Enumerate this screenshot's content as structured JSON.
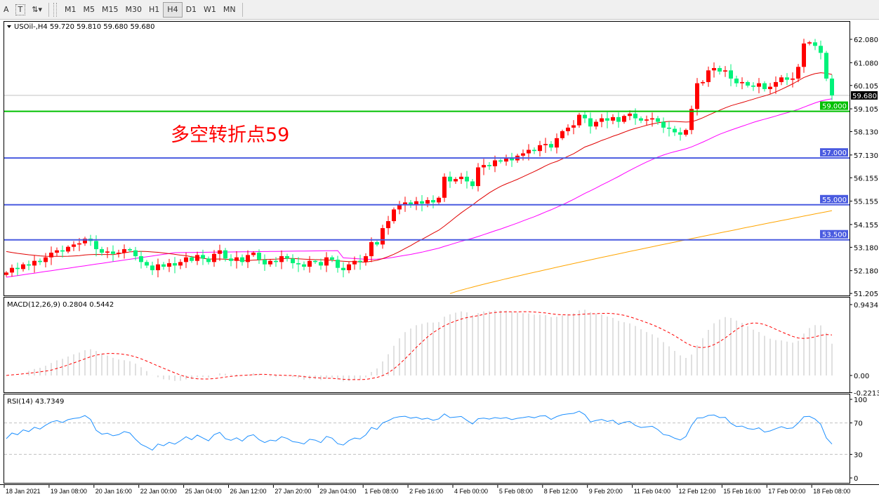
{
  "toolbar": {
    "tools": [
      {
        "label": "A",
        "icon": "text-tool-icon"
      },
      {
        "label": "T",
        "icon": "text-label-icon"
      },
      {
        "label": "⇅▾",
        "icon": "arrows-dropdown-icon"
      }
    ],
    "timeframes": [
      "M1",
      "M5",
      "M15",
      "M30",
      "H1",
      "H4",
      "D1",
      "W1",
      "MN"
    ],
    "active_timeframe": "H4"
  },
  "main": {
    "header": "USOil-,H4  59.720 59.810 59.680 59.680",
    "annotation": "多空转折点59",
    "annotation_color": "#FF0000",
    "price_ticks": [
      "62.080",
      "61.080",
      "60.105",
      "59.105",
      "58.130",
      "57.130",
      "56.155",
      "55.155",
      "54.155",
      "53.180",
      "52.180",
      "51.205"
    ],
    "current_price": "59.680",
    "levels": [
      {
        "value": 59.0,
        "label": "59.000",
        "color": "#00C000"
      },
      {
        "value": 57.0,
        "label": "57.000",
        "color": "#4A5BE0"
      },
      {
        "value": 55.0,
        "label": "55.000",
        "color": "#4A5BE0"
      },
      {
        "value": 53.5,
        "label": "53.500",
        "color": "#4A5BE0"
      }
    ],
    "bull_color": "#FF0000",
    "bear_color": "#00F27A",
    "ma_fast_color": "#E00000",
    "ma_mid_color": "#FF00FF",
    "ma_slow_color": "#FFA500"
  },
  "macd": {
    "header": "MACD(12,26,9) 0.2804 0.5442",
    "ticks": [
      "0.9434",
      "0.00",
      "-0.2213"
    ]
  },
  "rsi": {
    "header": "RSI(14) 43.7349",
    "ticks": [
      "100",
      "70",
      "30",
      "0"
    ]
  },
  "x_labels": [
    "18 Jan 2021",
    "19 Jan 08:00",
    "20 Jan 16:00",
    "22 Jan 00:00",
    "25 Jan 04:00",
    "26 Jan 12:00",
    "27 Jan 20:00",
    "29 Jan 04:00",
    "1 Feb 08:00",
    "2 Feb 16:00",
    "4 Feb 00:00",
    "5 Feb 08:00",
    "8 Feb 12:00",
    "9 Feb 20:00",
    "11 Feb 04:00",
    "12 Feb 12:00",
    "15 Feb 16:00",
    "17 Feb 00:00",
    "18 Feb 08:00"
  ],
  "chart_data": {
    "type": "candlestick",
    "symbol": "USOil-",
    "timeframe": "H4",
    "ylim": [
      51.205,
      62.08
    ],
    "closes": [
      52.1,
      52.3,
      52.25,
      52.45,
      52.4,
      52.6,
      52.55,
      52.75,
      52.95,
      53.05,
      53.0,
      53.2,
      53.3,
      53.35,
      53.55,
      53.45,
      53.1,
      52.95,
      53.0,
      52.9,
      52.95,
      53.1,
      53.05,
      52.8,
      52.55,
      52.4,
      52.2,
      52.45,
      52.35,
      52.5,
      52.4,
      52.55,
      52.75,
      52.6,
      52.85,
      52.7,
      52.55,
      52.9,
      53.05,
      52.7,
      52.6,
      52.75,
      52.55,
      52.85,
      52.95,
      52.65,
      52.45,
      52.6,
      52.55,
      52.8,
      52.7,
      52.5,
      52.45,
      52.35,
      52.6,
      52.55,
      52.4,
      52.75,
      52.65,
      52.3,
      52.2,
      52.45,
      52.6,
      52.55,
      52.8,
      53.4,
      53.3,
      54.0,
      54.3,
      54.8,
      55.0,
      55.1,
      55.0,
      55.15,
      55.05,
      55.2,
      55.1,
      55.3,
      56.2,
      56.0,
      56.1,
      56.2,
      56.0,
      55.8,
      56.6,
      56.7,
      56.65,
      56.9,
      56.85,
      57.0,
      56.9,
      57.1,
      57.2,
      57.35,
      57.3,
      57.55,
      57.6,
      57.45,
      57.85,
      58.15,
      58.3,
      58.4,
      58.85,
      58.7,
      58.35,
      58.55,
      58.7,
      58.6,
      58.75,
      58.55,
      58.8,
      58.9,
      58.7,
      58.6,
      58.65,
      58.7,
      58.55,
      58.3,
      58.25,
      58.1,
      58.0,
      58.2,
      59.1,
      60.2,
      60.25,
      60.75,
      60.85,
      60.7,
      60.75,
      60.4,
      60.2,
      60.25,
      60.1,
      60.05,
      60.2,
      59.95,
      60.05,
      60.25,
      60.45,
      60.35,
      60.4,
      60.9,
      61.9,
      61.95,
      61.8,
      61.5,
      60.4,
      59.68
    ],
    "ma_slow": {
      "start": 51.2,
      "end": 54.75,
      "from_label": "2 Feb 16:00"
    },
    "macd_range": [
      -0.2213,
      0.9434
    ],
    "rsi_range": [
      0,
      100
    ],
    "rsi_levels": [
      30,
      70
    ]
  }
}
